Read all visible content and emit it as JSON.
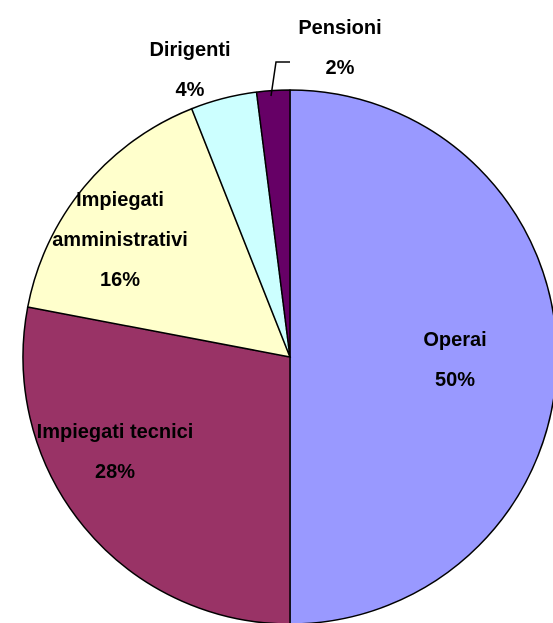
{
  "chart_data": {
    "type": "pie",
    "categories": [
      "Operai",
      "Impiegati tecnici",
      "Impiegati amministrativi",
      "Dirigenti",
      "Pensioni"
    ],
    "values": [
      50,
      28,
      16,
      4,
      2
    ],
    "value_labels": [
      "50%",
      "28%",
      "16%",
      "4%",
      "2%"
    ],
    "colors": [
      "#9999ff",
      "#993366",
      "#ffffcc",
      "#ccffff",
      "#660066"
    ]
  }
}
